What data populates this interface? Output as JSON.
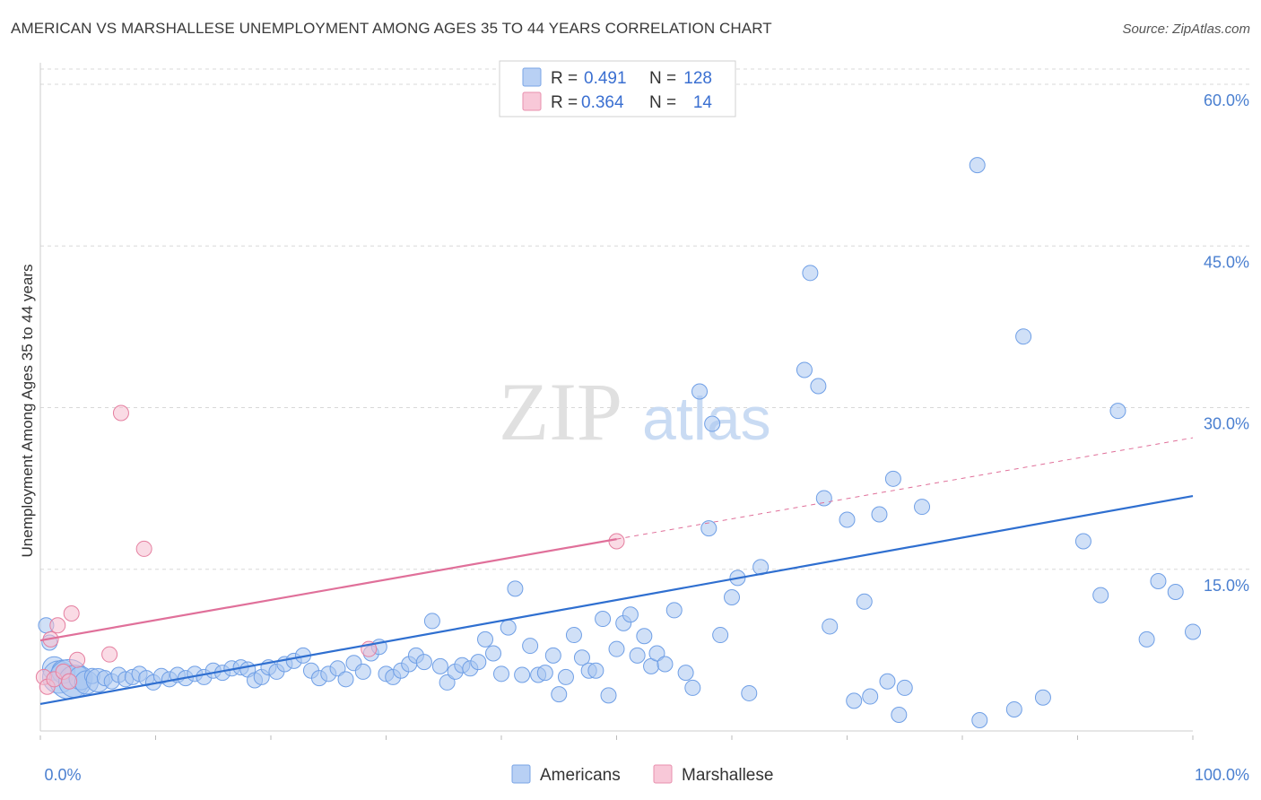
{
  "title": "AMERICAN VS MARSHALLESE UNEMPLOYMENT AMONG AGES 35 TO 44 YEARS CORRELATION CHART",
  "source": "Source: ZipAtlas.com",
  "watermark": {
    "zip": "ZIP",
    "atlas": "atlas"
  },
  "colors": {
    "blue": "#6f9fe6",
    "blue_fill": "#a9c6f1",
    "blue_line": "#2f6fd0",
    "pink": "#e57fa0",
    "pink_fill": "#f6bdd0",
    "pink_line": "#e0709a",
    "grid": "#d8d8d8",
    "axis_text": "#4a7fd0"
  },
  "legend": {
    "r_label": "R =",
    "n_label": "N =",
    "rows": [
      {
        "r": "0.491",
        "n": "128"
      },
      {
        "r": "0.364",
        "n": "14"
      }
    ]
  },
  "chart_data": {
    "type": "scatter",
    "xlabel": "",
    "ylabel": "Unemployment Among Ages 35 to 44 years",
    "xlim": [
      0,
      100
    ],
    "ylim": [
      0,
      62
    ],
    "x_tick_labels": [
      "0.0%",
      "100.0%"
    ],
    "y_ticks": [
      15,
      30,
      45,
      60
    ],
    "y_tick_labels": [
      "15.0%",
      "30.0%",
      "45.0%",
      "60.0%"
    ],
    "grid": true,
    "legend_position": "bottom",
    "series": [
      {
        "name": "Americans",
        "trend": {
          "x": [
            0,
            100
          ],
          "y": [
            2.5,
            21.8
          ],
          "dashed_to": null
        },
        "points": [
          [
            0.5,
            9.8,
            1
          ],
          [
            0.8,
            8.2,
            1
          ],
          [
            1.2,
            5.8,
            2
          ],
          [
            1.6,
            5.0,
            3
          ],
          [
            2.0,
            5.5,
            2
          ],
          [
            2.5,
            4.8,
            4
          ],
          [
            3.0,
            4.6,
            3
          ],
          [
            3.5,
            4.9,
            2
          ],
          [
            4.0,
            4.5,
            2
          ],
          [
            4.5,
            5.1,
            1
          ],
          [
            5.0,
            4.7,
            2
          ],
          [
            5.6,
            4.9,
            1
          ],
          [
            6.2,
            4.6,
            1
          ],
          [
            6.8,
            5.2,
            1
          ],
          [
            7.4,
            4.8,
            1
          ],
          [
            8.0,
            5.0,
            1
          ],
          [
            8.6,
            5.3,
            1
          ],
          [
            9.2,
            4.9,
            1
          ],
          [
            9.8,
            4.5,
            1
          ],
          [
            10.5,
            5.1,
            1
          ],
          [
            11.2,
            4.8,
            1
          ],
          [
            11.9,
            5.2,
            1
          ],
          [
            12.6,
            4.9,
            1
          ],
          [
            13.4,
            5.3,
            1
          ],
          [
            14.2,
            5.0,
            1
          ],
          [
            15.0,
            5.6,
            1
          ],
          [
            15.8,
            5.4,
            1
          ],
          [
            16.6,
            5.8,
            1
          ],
          [
            17.4,
            5.9,
            1
          ],
          [
            18.0,
            5.7,
            1
          ],
          [
            18.6,
            4.7,
            1
          ],
          [
            19.2,
            5.0,
            1
          ],
          [
            19.8,
            5.9,
            1
          ],
          [
            20.5,
            5.5,
            1
          ],
          [
            21.2,
            6.2,
            1
          ],
          [
            22.0,
            6.5,
            1
          ],
          [
            22.8,
            7.0,
            1
          ],
          [
            23.5,
            5.6,
            1
          ],
          [
            24.2,
            4.9,
            1
          ],
          [
            25.0,
            5.3,
            1
          ],
          [
            25.8,
            5.8,
            1
          ],
          [
            26.5,
            4.8,
            1
          ],
          [
            27.2,
            6.3,
            1
          ],
          [
            28.0,
            5.5,
            1
          ],
          [
            28.7,
            7.2,
            1
          ],
          [
            29.4,
            7.8,
            1
          ],
          [
            30.0,
            5.3,
            1
          ],
          [
            30.6,
            5.0,
            1
          ],
          [
            31.3,
            5.6,
            1
          ],
          [
            32.0,
            6.2,
            1
          ],
          [
            32.6,
            7.0,
            1
          ],
          [
            33.3,
            6.4,
            1
          ],
          [
            34.0,
            10.2,
            1
          ],
          [
            34.7,
            6.0,
            1
          ],
          [
            35.3,
            4.5,
            1
          ],
          [
            36.0,
            5.5,
            1
          ],
          [
            36.6,
            6.1,
            1
          ],
          [
            37.3,
            5.8,
            1
          ],
          [
            38.0,
            6.4,
            1
          ],
          [
            38.6,
            8.5,
            1
          ],
          [
            39.3,
            7.2,
            1
          ],
          [
            40.0,
            5.3,
            1
          ],
          [
            40.6,
            9.6,
            1
          ],
          [
            41.2,
            13.2,
            1
          ],
          [
            41.8,
            5.2,
            1
          ],
          [
            42.5,
            7.9,
            1
          ],
          [
            43.2,
            5.2,
            1
          ],
          [
            43.8,
            5.4,
            1
          ],
          [
            44.5,
            7.0,
            1
          ],
          [
            45.0,
            3.4,
            1
          ],
          [
            45.6,
            5.0,
            1
          ],
          [
            46.3,
            8.9,
            1
          ],
          [
            47.0,
            6.8,
            1
          ],
          [
            47.6,
            5.6,
            1
          ],
          [
            48.2,
            5.6,
            1
          ],
          [
            48.8,
            10.4,
            1
          ],
          [
            49.3,
            3.3,
            1
          ],
          [
            50.0,
            7.6,
            1
          ],
          [
            50.6,
            10.0,
            1
          ],
          [
            51.2,
            10.8,
            1
          ],
          [
            51.8,
            7.0,
            1
          ],
          [
            52.4,
            8.8,
            1
          ],
          [
            53.0,
            6.0,
            1
          ],
          [
            53.5,
            7.2,
            1
          ],
          [
            54.2,
            6.2,
            1
          ],
          [
            55.0,
            11.2,
            1
          ],
          [
            56.0,
            5.4,
            1
          ],
          [
            56.6,
            4.0,
            1
          ],
          [
            57.2,
            31.5,
            1
          ],
          [
            58.3,
            28.5,
            1
          ],
          [
            58.0,
            18.8,
            1
          ],
          [
            59.0,
            8.9,
            1
          ],
          [
            60.0,
            12.4,
            1
          ],
          [
            60.5,
            14.2,
            1
          ],
          [
            61.5,
            3.5,
            1
          ],
          [
            62.5,
            15.2,
            1
          ],
          [
            66.3,
            33.5,
            1
          ],
          [
            66.8,
            42.5,
            1
          ],
          [
            67.5,
            32.0,
            1
          ],
          [
            68.0,
            21.6,
            1
          ],
          [
            68.5,
            9.7,
            1
          ],
          [
            70.0,
            19.6,
            1
          ],
          [
            70.6,
            2.8,
            1
          ],
          [
            71.5,
            12.0,
            1
          ],
          [
            72.0,
            3.2,
            1
          ],
          [
            72.8,
            20.1,
            1
          ],
          [
            73.5,
            4.6,
            1
          ],
          [
            74.0,
            23.4,
            1
          ],
          [
            74.5,
            1.5,
            1
          ],
          [
            75.0,
            4.0,
            1
          ],
          [
            76.5,
            20.8,
            1
          ],
          [
            81.5,
            1.0,
            1
          ],
          [
            84.5,
            2.0,
            1
          ],
          [
            85.3,
            36.6,
            1
          ],
          [
            87.0,
            3.1,
            1
          ],
          [
            90.5,
            17.6,
            1
          ],
          [
            92.0,
            12.6,
            1
          ],
          [
            93.5,
            29.7,
            1
          ],
          [
            96.0,
            8.5,
            1
          ],
          [
            97.0,
            13.9,
            1
          ],
          [
            98.5,
            12.9,
            1
          ],
          [
            100.0,
            9.2,
            1
          ],
          [
            81.3,
            52.5,
            1
          ]
        ]
      },
      {
        "name": "Marshallese",
        "trend": {
          "x": [
            0,
            50
          ],
          "y": [
            8.4,
            17.8
          ],
          "dashed_to": [
            100,
            27.2
          ]
        },
        "points": [
          [
            0.3,
            5.0,
            1
          ],
          [
            0.6,
            4.1,
            1
          ],
          [
            0.9,
            8.5,
            1
          ],
          [
            1.2,
            4.8,
            1
          ],
          [
            1.5,
            9.8,
            1
          ],
          [
            2.0,
            5.5,
            1
          ],
          [
            2.5,
            4.6,
            1
          ],
          [
            2.7,
            10.9,
            1
          ],
          [
            3.2,
            6.6,
            1
          ],
          [
            6.0,
            7.1,
            1
          ],
          [
            7.0,
            29.5,
            1
          ],
          [
            9.0,
            16.9,
            1
          ],
          [
            28.5,
            7.6,
            1
          ],
          [
            50.0,
            17.6,
            1
          ]
        ]
      }
    ]
  },
  "bottom_legend": [
    "Americans",
    "Marshallese"
  ]
}
